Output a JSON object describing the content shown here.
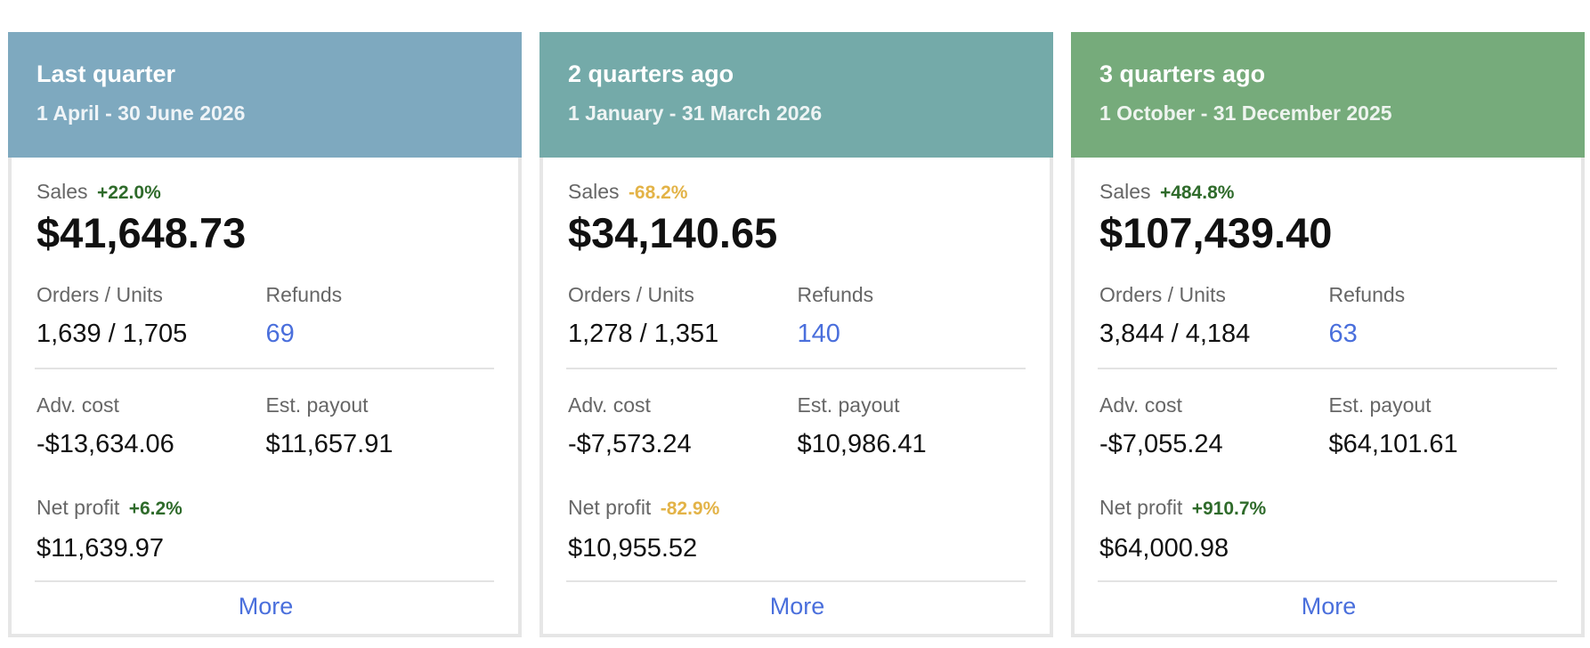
{
  "labels": {
    "sales": "Sales",
    "orders_units": "Orders / Units",
    "refunds": "Refunds",
    "adv_cost": "Adv. cost",
    "est_payout": "Est. payout",
    "net_profit": "Net profit",
    "more": "More"
  },
  "colors": {
    "header_last_quarter": "#7ea9bf",
    "header_2_quarters_ago": "#74aaa9",
    "header_3_quarters_ago": "#76ab7b",
    "positive_change": "#2f6b2b",
    "negative_change": "#e3b347",
    "link": "#4a6fdc"
  },
  "cards": [
    {
      "title": "Last quarter",
      "range": "1 April - 30 June 2026",
      "sales_change": "+22.0%",
      "sales_change_direction": "up",
      "sales": "$41,648.73",
      "orders_units": "1,639 / 1,705",
      "refunds": "69",
      "adv_cost": "-$13,634.06",
      "est_payout": "$11,657.91",
      "net_profit_change": "+6.2%",
      "net_profit_change_direction": "up",
      "net_profit": "$11,639.97"
    },
    {
      "title": "2 quarters ago",
      "range": "1 January - 31 March 2026",
      "sales_change": "-68.2%",
      "sales_change_direction": "down",
      "sales": "$34,140.65",
      "orders_units": "1,278 / 1,351",
      "refunds": "140",
      "adv_cost": "-$7,573.24",
      "est_payout": "$10,986.41",
      "net_profit_change": "-82.9%",
      "net_profit_change_direction": "down",
      "net_profit": "$10,955.52"
    },
    {
      "title": "3 quarters ago",
      "range": "1 October - 31 December 2025",
      "sales_change": "+484.8%",
      "sales_change_direction": "up",
      "sales": "$107,439.40",
      "orders_units": "3,844 / 4,184",
      "refunds": "63",
      "adv_cost": "-$7,055.24",
      "est_payout": "$64,101.61",
      "net_profit_change": "+910.7%",
      "net_profit_change_direction": "up",
      "net_profit": "$64,000.98"
    }
  ]
}
